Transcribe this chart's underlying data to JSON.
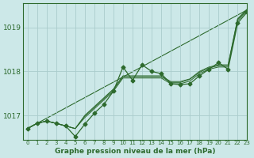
{
  "background_color": "#cce8e8",
  "grid_color": "#aacccc",
  "line_color": "#2d6a2d",
  "title": "Graphe pression niveau de la mer (hPa)",
  "xlim": [
    -0.5,
    23
  ],
  "ylim": [
    1016.45,
    1019.55
  ],
  "yticks": [
    1017,
    1018,
    1019
  ],
  "xticks": [
    0,
    1,
    2,
    3,
    4,
    5,
    6,
    7,
    8,
    9,
    10,
    11,
    12,
    13,
    14,
    15,
    16,
    17,
    18,
    19,
    20,
    21,
    22,
    23
  ],
  "straight_line": [
    1016.7,
    1019.4
  ],
  "series_marked": [
    1016.7,
    1016.82,
    1016.87,
    1016.82,
    1016.76,
    1016.52,
    1016.8,
    1017.05,
    1017.25,
    1017.55,
    1018.1,
    1017.8,
    1018.15,
    1018.0,
    1017.95,
    1017.72,
    1017.7,
    1017.72,
    1017.9,
    1018.05,
    1018.2,
    1018.05,
    1019.1,
    1019.35
  ],
  "series_smooth1": [
    1016.7,
    1016.82,
    1016.87,
    1016.82,
    1016.76,
    1016.7,
    1016.95,
    1017.15,
    1017.35,
    1017.55,
    1017.85,
    1017.85,
    1017.85,
    1017.85,
    1017.85,
    1017.72,
    1017.72,
    1017.78,
    1017.95,
    1018.05,
    1018.1,
    1018.1,
    1019.15,
    1019.38
  ],
  "series_smooth2": [
    1016.7,
    1016.82,
    1016.87,
    1016.82,
    1016.76,
    1016.7,
    1016.98,
    1017.18,
    1017.38,
    1017.58,
    1017.88,
    1017.88,
    1017.88,
    1017.88,
    1017.88,
    1017.75,
    1017.75,
    1017.82,
    1017.98,
    1018.08,
    1018.13,
    1018.13,
    1019.18,
    1019.4
  ],
  "series_smooth3": [
    1016.7,
    1016.82,
    1016.87,
    1016.82,
    1016.76,
    1016.7,
    1017.0,
    1017.2,
    1017.4,
    1017.6,
    1017.9,
    1017.9,
    1017.9,
    1017.9,
    1017.9,
    1017.77,
    1017.77,
    1017.83,
    1018.0,
    1018.1,
    1018.15,
    1018.15,
    1019.2,
    1019.42
  ],
  "marker": "D",
  "markersize": 2.5
}
